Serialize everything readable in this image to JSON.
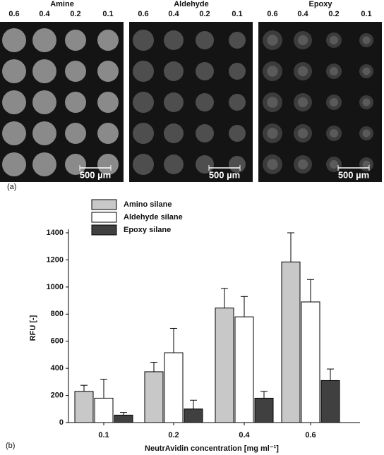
{
  "panel_a": {
    "label": "(a)",
    "images": [
      {
        "title": "Amine",
        "columns": [
          "0.6",
          "0.4",
          "0.2",
          "0.1"
        ],
        "scale_bar": "500 µm"
      },
      {
        "title": "Aldehyde",
        "columns": [
          "0.6",
          "0.4",
          "0.2",
          "0.1"
        ],
        "scale_bar": "500 µm"
      },
      {
        "title": "Epoxy",
        "columns": [
          "0.6",
          "0.4",
          "0.2",
          "0.1"
        ],
        "scale_bar": "500 µm"
      }
    ]
  },
  "chart_data": {
    "type": "bar",
    "panel_label": "(b)",
    "x_label": "NeutrAvidin concentration [mg ml⁻¹]",
    "y_label": "RFU [-]",
    "categories": [
      "0.1",
      "0.2",
      "0.4",
      "0.6"
    ],
    "series": [
      {
        "name": "Amino silane",
        "color": "#c8c8c8",
        "values": [
          230,
          375,
          845,
          1185
        ],
        "errors": [
          45,
          70,
          145,
          215
        ]
      },
      {
        "name": "Aldehyde silane",
        "color": "#ffffff",
        "values": [
          180,
          515,
          780,
          890
        ],
        "errors": [
          140,
          180,
          150,
          165
        ]
      },
      {
        "name": "Epoxy silane",
        "color": "#404040",
        "values": [
          55,
          100,
          180,
          310
        ],
        "errors": [
          20,
          65,
          50,
          85
        ]
      }
    ],
    "ylim": [
      0,
      1400
    ],
    "yticks": [
      0,
      200,
      400,
      600,
      800,
      1000,
      1200,
      1400
    ]
  }
}
